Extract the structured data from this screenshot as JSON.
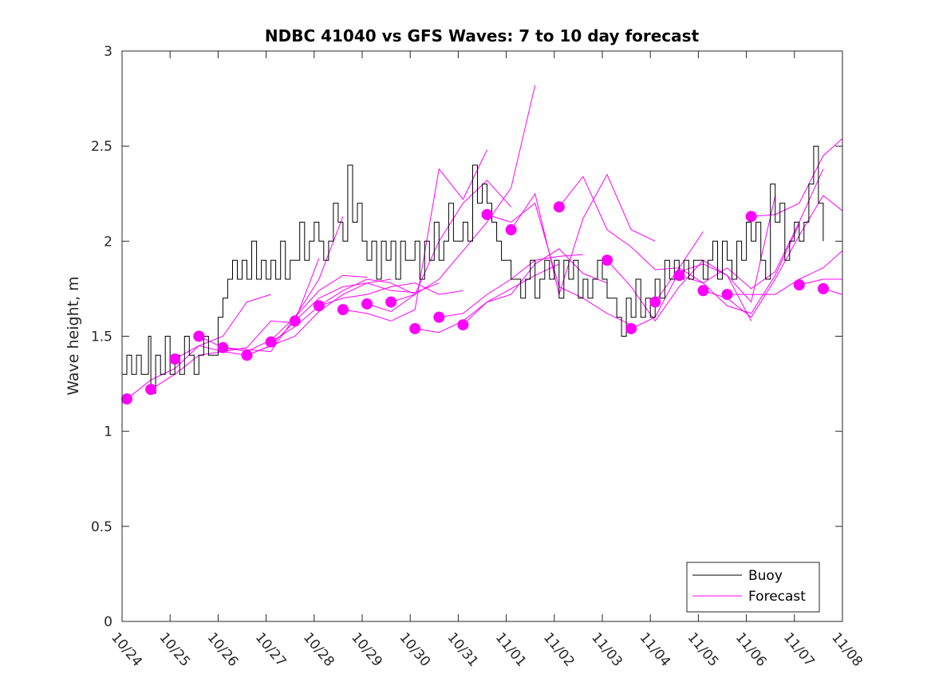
{
  "chart_data": {
    "type": "line",
    "title": "NDBC 41040 vs GFS Waves: 7 to 10 day forecast",
    "xlabel": "",
    "ylabel": "Wave height, m",
    "x_unit": "days since 10/24",
    "xlim": [
      0,
      15
    ],
    "ylim": [
      0,
      3
    ],
    "yticks": [
      0,
      0.5,
      1,
      1.5,
      2,
      2.5,
      3
    ],
    "ytick_labels": [
      "0",
      "0.5",
      "1",
      "1.5",
      "2",
      "2.5",
      "3"
    ],
    "xticks": [
      0,
      1,
      2,
      3,
      4,
      5,
      6,
      7,
      8,
      9,
      10,
      11,
      12,
      13,
      14,
      15
    ],
    "xtick_labels": [
      "10/24",
      "10/25",
      "10/26",
      "10/27",
      "10/28",
      "10/29",
      "10/30",
      "10/31",
      "11/01",
      "11/02",
      "11/03",
      "11/04",
      "11/05",
      "11/06",
      "11/07",
      "11/08"
    ],
    "grid": false,
    "legend": {
      "position": "bottom-right",
      "entries": [
        {
          "label": "Buoy",
          "color": "#000000"
        },
        {
          "label": "Forecast",
          "color": "#ff00ff"
        }
      ]
    },
    "colors": {
      "buoy": "#000000",
      "forecast": "#ff00ff"
    },
    "series": [
      {
        "name": "Buoy",
        "x": [
          0,
          0.1,
          0.2,
          0.3,
          0.4,
          0.5,
          0.55,
          0.6,
          0.7,
          0.8,
          0.9,
          1.0,
          1.1,
          1.2,
          1.3,
          1.4,
          1.5,
          1.6,
          1.7,
          1.8,
          1.9,
          2.0,
          2.1,
          2.2,
          2.3,
          2.4,
          2.5,
          2.6,
          2.7,
          2.8,
          2.9,
          3.0,
          3.1,
          3.2,
          3.3,
          3.4,
          3.5,
          3.6,
          3.7,
          3.8,
          3.9,
          4.0,
          4.1,
          4.2,
          4.3,
          4.4,
          4.5,
          4.6,
          4.7,
          4.8,
          4.9,
          5.0,
          5.1,
          5.2,
          5.3,
          5.4,
          5.5,
          5.6,
          5.7,
          5.8,
          5.9,
          6.0,
          6.1,
          6.2,
          6.3,
          6.4,
          6.5,
          6.6,
          6.7,
          6.8,
          6.9,
          7.0,
          7.1,
          7.2,
          7.3,
          7.4,
          7.5,
          7.6,
          7.7,
          7.8,
          7.9,
          8.0,
          8.1,
          8.2,
          8.3,
          8.4,
          8.5,
          8.6,
          8.7,
          8.8,
          8.9,
          9.0,
          9.1,
          9.2,
          9.3,
          9.4,
          9.5,
          9.6,
          9.7,
          9.8,
          9.9,
          10.0,
          10.1,
          10.2,
          10.3,
          10.4,
          10.5,
          10.6,
          10.7,
          10.8,
          10.9,
          11.0,
          11.1,
          11.2,
          11.3,
          11.4,
          11.5,
          11.6,
          11.7,
          11.8,
          11.9,
          12.0,
          12.1,
          12.2,
          12.3,
          12.4,
          12.5,
          12.6,
          12.7,
          12.8,
          12.9,
          13.0,
          13.1,
          13.2,
          13.3,
          13.4,
          13.5,
          13.6,
          13.7,
          13.8,
          13.9,
          14.0,
          14.1,
          14.2,
          14.3,
          14.4,
          14.5,
          14.6
        ],
        "y": [
          1.3,
          1.4,
          1.3,
          1.4,
          1.3,
          1.3,
          1.5,
          1.2,
          1.4,
          1.3,
          1.5,
          1.3,
          1.4,
          1.3,
          1.5,
          1.4,
          1.3,
          1.4,
          1.5,
          1.4,
          1.4,
          1.6,
          1.7,
          1.8,
          1.9,
          1.8,
          1.9,
          1.8,
          2.0,
          1.8,
          1.9,
          1.8,
          1.9,
          1.8,
          2.0,
          1.8,
          1.9,
          1.9,
          2.1,
          1.9,
          2.0,
          2.1,
          2.0,
          1.9,
          2.0,
          2.2,
          2.1,
          2.0,
          2.4,
          2.1,
          2.2,
          2.0,
          1.9,
          2.0,
          1.8,
          2.0,
          1.9,
          2.0,
          1.8,
          2.0,
          1.9,
          1.9,
          2.0,
          1.8,
          2.0,
          1.9,
          2.1,
          1.9,
          2.0,
          2.2,
          2.0,
          2.0,
          2.1,
          2.0,
          2.4,
          2.2,
          2.3,
          2.2,
          2.1,
          2.0,
          1.9,
          1.9,
          1.8,
          1.8,
          1.7,
          1.8,
          1.9,
          1.7,
          1.8,
          1.9,
          1.8,
          1.9,
          1.7,
          1.9,
          1.8,
          1.9,
          1.7,
          1.8,
          1.7,
          1.8,
          1.9,
          1.8,
          1.7,
          1.7,
          1.6,
          1.5,
          1.7,
          1.6,
          1.8,
          1.6,
          1.7,
          1.6,
          1.8,
          1.7,
          1.9,
          1.8,
          1.9,
          1.8,
          1.9,
          1.8,
          1.9,
          1.9,
          1.8,
          1.9,
          2.0,
          1.8,
          2.0,
          1.9,
          1.8,
          2.0,
          1.9,
          2.1,
          2.0,
          2.1,
          1.9,
          1.8,
          2.3,
          2.1,
          2.2,
          1.9,
          2.0,
          2.1,
          2.0,
          2.1,
          2.3,
          2.5,
          2.2,
          2.0
        ]
      },
      {
        "name": "Forecast start points",
        "marker": "circle",
        "x": [
          0.1,
          0.6,
          1.1,
          1.6,
          2.1,
          2.6,
          3.1,
          3.6,
          4.1,
          4.6,
          5.1,
          5.6,
          6.1,
          6.6,
          7.1,
          7.6,
          8.1,
          9.1,
          10.1,
          10.6,
          11.1,
          11.6,
          12.1,
          12.6,
          13.1,
          14.1,
          14.6
        ],
        "y": [
          1.17,
          1.22,
          1.38,
          1.5,
          1.44,
          1.4,
          1.47,
          1.58,
          1.66,
          1.64,
          1.67,
          1.68,
          1.54,
          1.6,
          1.56,
          2.14,
          2.06,
          2.18,
          1.9,
          1.54,
          1.68,
          1.82,
          1.74,
          1.72,
          2.13,
          1.77,
          1.75
        ]
      },
      {
        "name": "Forecast",
        "lines": [
          {
            "x": [
              0.1,
              0.6,
              1.1,
              1.6,
              2.1,
              2.6,
              3.1
            ],
            "y": [
              1.17,
              1.27,
              1.33,
              1.45,
              1.5,
              1.68,
              1.72
            ]
          },
          {
            "x": [
              0.6,
              1.1,
              1.6,
              2.1,
              2.6,
              3.1,
              3.6
            ],
            "y": [
              1.22,
              1.3,
              1.4,
              1.42,
              1.44,
              1.58,
              1.57
            ]
          },
          {
            "x": [
              1.1,
              1.6,
              2.1,
              2.6,
              3.1,
              3.6,
              4.1
            ],
            "y": [
              1.38,
              1.45,
              1.42,
              1.4,
              1.45,
              1.58,
              1.91
            ]
          },
          {
            "x": [
              1.6,
              2.1,
              2.6,
              3.1,
              3.6,
              4.1,
              4.6
            ],
            "y": [
              1.5,
              1.44,
              1.43,
              1.42,
              1.6,
              1.8,
              2.13
            ]
          },
          {
            "x": [
              2.1,
              2.6,
              3.1,
              3.6,
              4.1,
              4.6,
              5.1
            ],
            "y": [
              1.44,
              1.42,
              1.48,
              1.6,
              1.74,
              1.82,
              1.81
            ]
          },
          {
            "x": [
              2.6,
              3.1,
              3.6,
              4.1,
              4.6,
              5.1,
              5.6
            ],
            "y": [
              1.4,
              1.45,
              1.5,
              1.63,
              1.72,
              1.78,
              1.8
            ]
          },
          {
            "x": [
              3.1,
              3.6,
              4.1,
              4.6,
              5.1,
              5.6,
              6.1
            ],
            "y": [
              1.47,
              1.55,
              1.66,
              1.74,
              1.8,
              1.78,
              1.72
            ]
          },
          {
            "x": [
              3.6,
              4.1,
              4.6,
              5.1,
              5.6,
              6.1,
              6.6
            ],
            "y": [
              1.58,
              1.7,
              1.76,
              1.78,
              1.74,
              1.73,
              1.78
            ]
          },
          {
            "x": [
              4.1,
              4.6,
              5.1,
              5.6,
              6.1,
              6.6,
              7.1
            ],
            "y": [
              1.66,
              1.7,
              1.72,
              1.76,
              1.78,
              1.72,
              1.74
            ]
          },
          {
            "x": [
              4.6,
              5.1,
              5.6,
              6.1,
              6.6,
              7.1,
              7.6
            ],
            "y": [
              1.64,
              1.62,
              1.58,
              1.64,
              2.38,
              2.22,
              2.48
            ]
          },
          {
            "x": [
              5.1,
              5.6,
              6.1,
              6.6,
              7.1,
              7.6,
              8.1
            ],
            "y": [
              1.67,
              1.63,
              1.72,
              2.0,
              2.2,
              2.32,
              2.18
            ]
          },
          {
            "x": [
              5.6,
              6.1,
              6.6,
              7.1,
              7.6,
              8.1,
              8.6
            ],
            "y": [
              1.68,
              1.72,
              1.8,
              1.95,
              2.1,
              2.28,
              2.82
            ]
          },
          {
            "x": [
              6.1,
              6.6,
              7.1,
              7.6,
              8.1,
              8.6,
              9.1
            ],
            "y": [
              1.54,
              1.52,
              1.58,
              1.68,
              1.75,
              1.82,
              1.88
            ]
          },
          {
            "x": [
              6.6,
              7.1,
              7.6,
              8.1,
              8.6,
              9.1,
              9.6
            ],
            "y": [
              1.6,
              1.62,
              1.72,
              1.8,
              1.9,
              1.92,
              1.93
            ]
          },
          {
            "x": [
              7.1,
              7.6,
              8.1,
              8.6,
              9.1,
              9.6,
              10.1
            ],
            "y": [
              1.56,
              1.68,
              1.72,
              1.88,
              1.96,
              1.83,
              1.78
            ]
          },
          {
            "x": [
              7.6,
              8.1,
              8.6,
              9.1,
              9.6,
              10.1,
              10.6
            ],
            "y": [
              2.14,
              2.1,
              2.2,
              1.76,
              1.7,
              1.62,
              1.56
            ]
          },
          {
            "x": [
              8.1,
              8.6,
              9.1,
              9.6,
              10.1,
              10.6,
              11.1
            ],
            "y": [
              2.06,
              2.25,
              1.72,
              2.12,
              2.35,
              2.06,
              2.0
            ]
          },
          {
            "x": [
              9.1,
              9.6,
              10.1,
              10.6,
              11.1,
              11.6,
              12.1
            ],
            "y": [
              2.18,
              2.34,
              2.06,
              1.97,
              1.85,
              1.86,
              2.05
            ]
          },
          {
            "x": [
              10.1,
              10.6,
              11.1,
              11.6,
              12.1,
              12.6,
              13.1
            ],
            "y": [
              1.9,
              1.76,
              1.58,
              1.76,
              1.9,
              1.82,
              1.58
            ]
          },
          {
            "x": [
              10.6,
              11.1,
              11.6,
              12.1,
              12.6,
              13.1,
              13.6
            ],
            "y": [
              1.54,
              1.6,
              1.84,
              1.88,
              1.82,
              1.68,
              2.24
            ]
          },
          {
            "x": [
              11.1,
              11.6,
              12.1,
              12.6,
              13.1,
              13.6,
              14.1
            ],
            "y": [
              1.68,
              1.86,
              1.78,
              1.66,
              1.62,
              1.82,
              2.09
            ]
          },
          {
            "x": [
              11.6,
              12.1,
              12.6,
              13.1,
              13.6,
              14.1,
              14.6
            ],
            "y": [
              1.82,
              1.78,
              1.86,
              1.75,
              1.84,
              2.1,
              2.38
            ]
          },
          {
            "x": [
              12.1,
              12.6,
              13.1,
              13.6,
              14.1,
              14.6,
              15.0
            ],
            "y": [
              1.74,
              1.7,
              1.6,
              1.8,
              2.03,
              2.24,
              2.16
            ]
          },
          {
            "x": [
              12.6,
              13.1,
              13.6,
              14.1,
              14.6,
              15.0
            ],
            "y": [
              1.72,
              1.72,
              1.72,
              1.8,
              1.86,
              1.95
            ]
          },
          {
            "x": [
              13.1,
              13.6,
              14.1,
              14.6,
              15.0
            ],
            "y": [
              2.13,
              2.14,
              2.2,
              2.45,
              2.54
            ]
          },
          {
            "x": [
              14.1,
              14.6,
              15.0
            ],
            "y": [
              1.77,
              1.8,
              1.8
            ]
          },
          {
            "x": [
              14.6,
              15.0
            ],
            "y": [
              1.75,
              1.72
            ]
          }
        ]
      }
    ]
  }
}
